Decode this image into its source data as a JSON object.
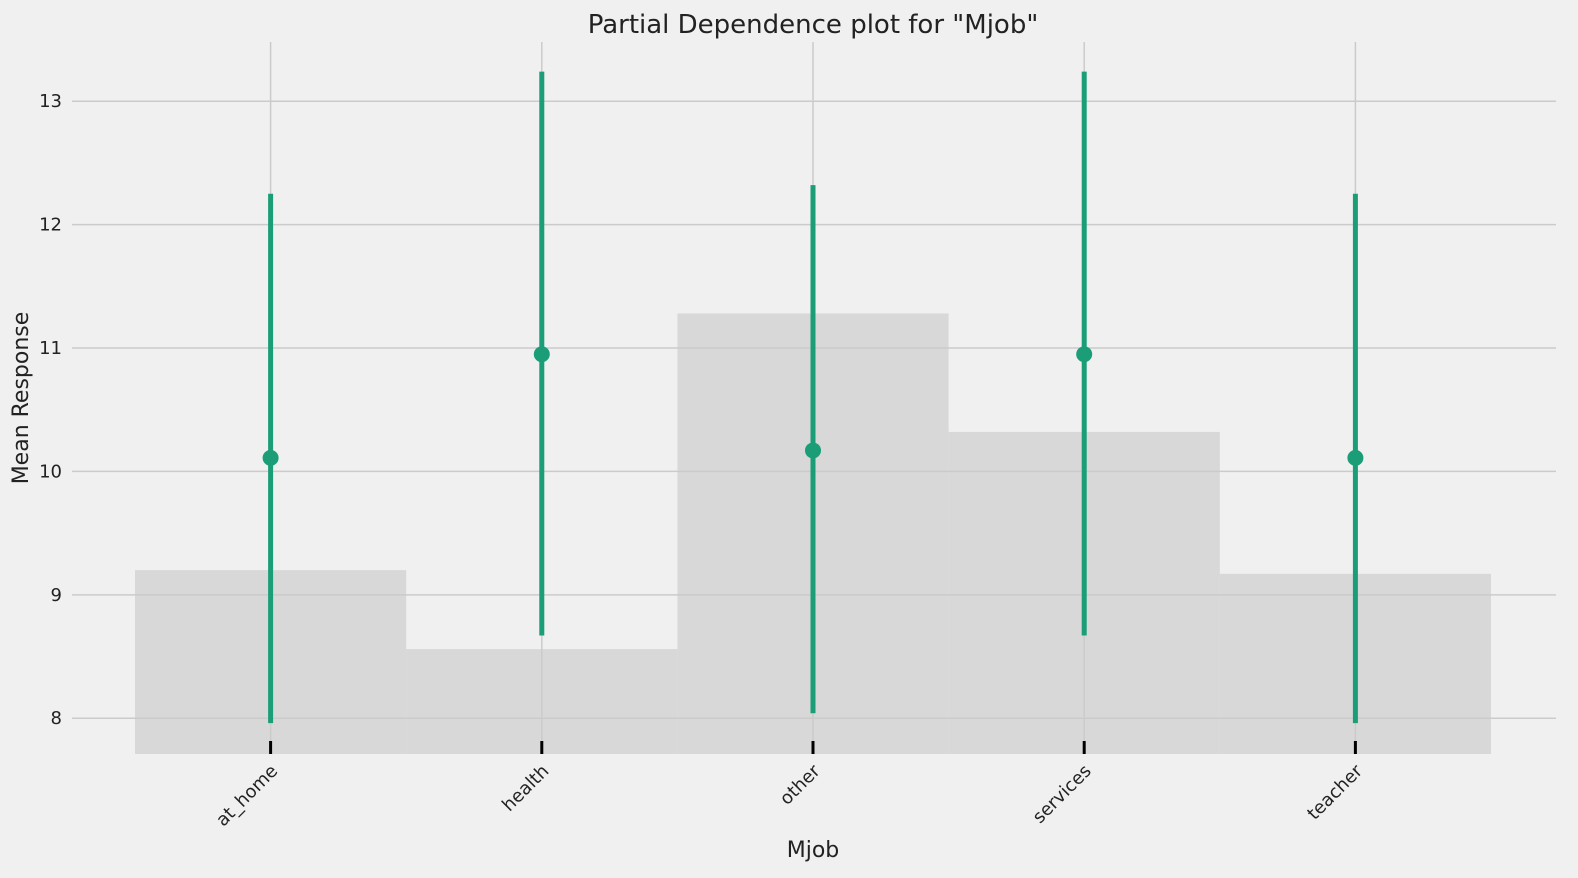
{
  "colors": {
    "background": "#f0f0f0",
    "grid": "#cbcbcb",
    "histogram": "#d8d8d8",
    "series": "#1b9e77",
    "tick_marks": "#000000"
  },
  "chart_data": {
    "type": "scatter",
    "title": "Partial Dependence plot for \"Mjob\"",
    "xlabel": "Mjob",
    "ylabel": "Mean Response",
    "categories": [
      "at_home",
      "health",
      "other",
      "services",
      "teacher"
    ],
    "series": [
      {
        "values": [
          10.11,
          10.95,
          10.17,
          10.95,
          10.11
        ],
        "lower": [
          7.96,
          8.67,
          8.04,
          8.67,
          7.96
        ],
        "upper": [
          12.25,
          13.24,
          12.32,
          13.24,
          12.25
        ]
      }
    ],
    "histogram_heights": [
      9.2,
      8.56,
      11.28,
      10.32,
      9.17
    ],
    "ylim": [
      7.71,
      13.48
    ],
    "yticks": [
      8,
      9,
      10,
      11,
      12,
      13
    ],
    "grid": true,
    "x_tick_label_rotation": -45
  }
}
